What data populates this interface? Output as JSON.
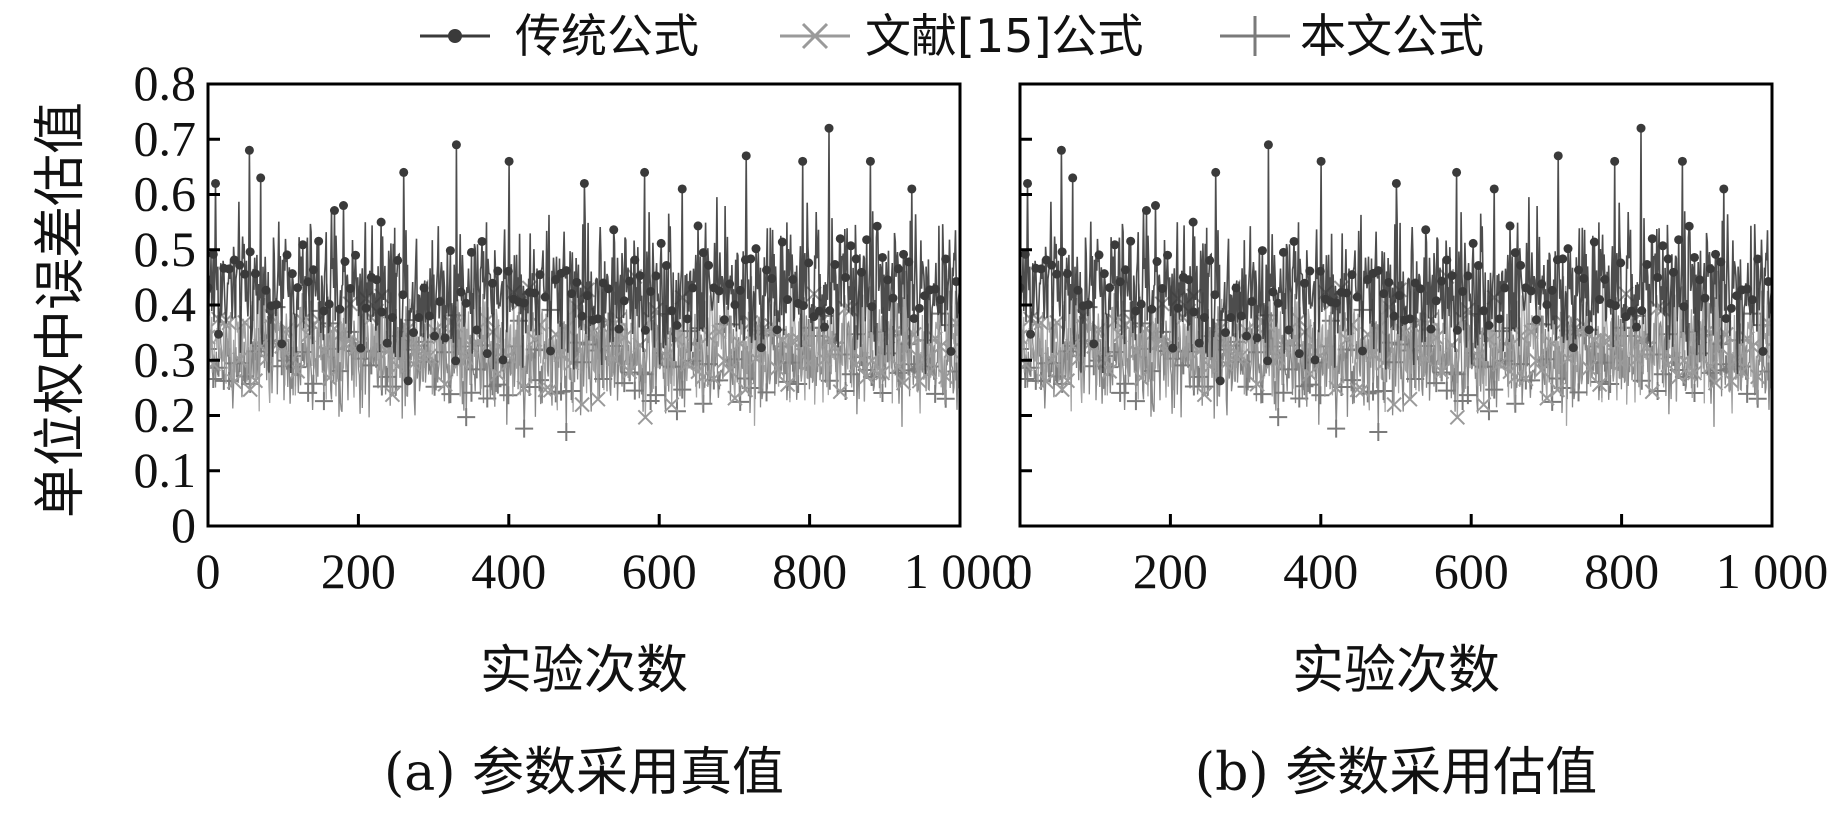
{
  "legend": [
    {
      "label": "传统公式",
      "color": "#3a3a3a",
      "marker": "filled-circle"
    },
    {
      "label": "文献[15]公式",
      "color": "#9a9a9a",
      "marker": "x-cross"
    },
    {
      "label": "本文公式",
      "color": "#7a7a7a",
      "marker": "plus"
    }
  ],
  "y_axis_label": "单位权中误差估值",
  "chart_data": [
    {
      "type": "line",
      "caption": "(a) 参数采用真值",
      "xlabel": "实验次数",
      "ylabel": "单位权中误差估值",
      "xlim": [
        0,
        1000
      ],
      "ylim": [
        0,
        0.8
      ],
      "x_ticks": [
        0,
        200,
        400,
        600,
        800,
        1000
      ],
      "x_tick_labels": [
        "0",
        "200",
        "400",
        "600",
        "800",
        "1 000"
      ],
      "y_ticks": [
        0,
        0.1,
        0.2,
        0.3,
        0.4,
        0.5,
        0.6,
        0.7,
        0.8
      ],
      "y_tick_labels": [
        "0",
        "0.1",
        "0.2",
        "0.3",
        "0.4",
        "0.5",
        "0.6",
        "0.7",
        "0.8"
      ],
      "n_points": 1000,
      "series": [
        {
          "name": "传统公式",
          "mean": 0.43,
          "min": 0.14,
          "max": 0.72,
          "peaks": [
            [
              10,
              0.62
            ],
            [
              55,
              0.68
            ],
            [
              70,
              0.63
            ],
            [
              180,
              0.58
            ],
            [
              230,
              0.55
            ],
            [
              260,
              0.64
            ],
            [
              330,
              0.69
            ],
            [
              400,
              0.66
            ],
            [
              500,
              0.62
            ],
            [
              580,
              0.64
            ],
            [
              630,
              0.61
            ],
            [
              715,
              0.67
            ],
            [
              790,
              0.66
            ],
            [
              825,
              0.72
            ],
            [
              880,
              0.66
            ],
            [
              935,
              0.61
            ]
          ]
        },
        {
          "name": "文献[15]公式",
          "mean": 0.33,
          "min": 0.06,
          "max": 0.55
        },
        {
          "name": "本文公式",
          "mean": 0.3,
          "min": 0.08,
          "max": 0.52
        }
      ]
    },
    {
      "type": "line",
      "caption": "(b) 参数采用估值",
      "xlabel": "实验次数",
      "ylabel": "",
      "xlim": [
        0,
        1000
      ],
      "ylim": [
        0,
        0.8
      ],
      "x_ticks": [
        0,
        200,
        400,
        600,
        800,
        1000
      ],
      "x_tick_labels": [
        "0",
        "200",
        "400",
        "600",
        "800",
        "1 000"
      ],
      "y_ticks": [
        0,
        0.1,
        0.2,
        0.3,
        0.4,
        0.5,
        0.6,
        0.7,
        0.8
      ],
      "y_tick_labels": [],
      "n_points": 1000,
      "series": [
        {
          "name": "传统公式",
          "mean": 0.43,
          "min": 0.14,
          "max": 0.72,
          "peaks": [
            [
              10,
              0.62
            ],
            [
              55,
              0.68
            ],
            [
              70,
              0.63
            ],
            [
              180,
              0.58
            ],
            [
              230,
              0.55
            ],
            [
              260,
              0.64
            ],
            [
              330,
              0.69
            ],
            [
              400,
              0.66
            ],
            [
              500,
              0.62
            ],
            [
              580,
              0.64
            ],
            [
              630,
              0.61
            ],
            [
              715,
              0.67
            ],
            [
              790,
              0.66
            ],
            [
              825,
              0.72
            ],
            [
              880,
              0.66
            ],
            [
              935,
              0.61
            ]
          ]
        },
        {
          "name": "文献[15]公式",
          "mean": 0.33,
          "min": 0.06,
          "max": 0.55
        },
        {
          "name": "本文公式",
          "mean": 0.3,
          "min": 0.08,
          "max": 0.52
        }
      ]
    }
  ]
}
